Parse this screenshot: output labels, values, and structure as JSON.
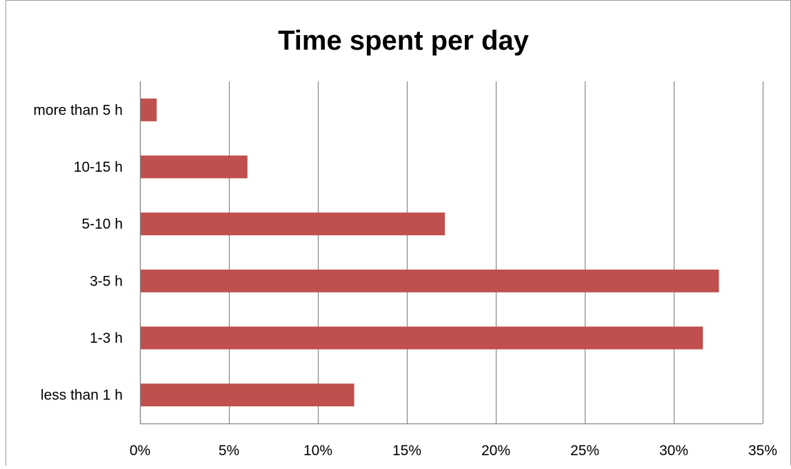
{
  "chart_data": {
    "type": "bar",
    "orientation": "horizontal",
    "title": "Time spent per day",
    "categories": [
      "less than 1 h",
      "1-3 h",
      "3-5 h",
      "5-10 h",
      "10-15 h",
      "more than 5 h"
    ],
    "values": [
      0.12,
      0.316,
      0.325,
      0.171,
      0.06,
      0.009
    ],
    "value_format": "percent",
    "xlim": [
      0,
      0.35
    ],
    "xticks": [
      0,
      0.05,
      0.1,
      0.15,
      0.2,
      0.25,
      0.3,
      0.35
    ],
    "xtick_labels": [
      "0%",
      "5%",
      "10%",
      "15%",
      "20%",
      "25%",
      "30%",
      "35%"
    ],
    "xlabel": "",
    "ylabel": "",
    "grid": "vertical",
    "legend": "none",
    "bar_color": "#C0504D",
    "gridline_color": "#868686"
  }
}
